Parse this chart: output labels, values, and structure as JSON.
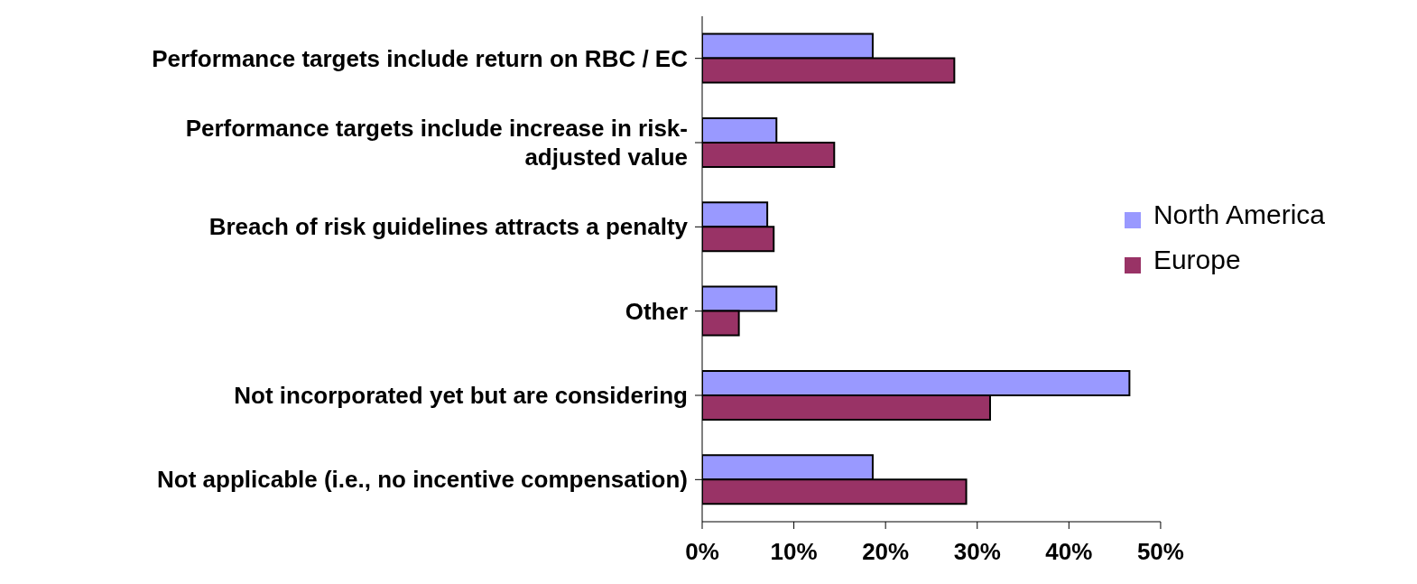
{
  "chart_data": {
    "type": "bar",
    "orientation": "horizontal",
    "categories": [
      "Performance targets include return on RBC / EC",
      "Performance targets include increase in risk-adjusted value",
      "Breach of risk guidelines attracts a penalty",
      "Other",
      "Not incorporated yet but are considering",
      "Not applicable (i.e., no incentive compensation)"
    ],
    "series": [
      {
        "name": "North America",
        "color": "#9999ff",
        "values": [
          18.6,
          8.1,
          7.1,
          8.1,
          46.6,
          18.6
        ]
      },
      {
        "name": "Europe",
        "color": "#993366",
        "values": [
          27.5,
          14.4,
          7.8,
          4.0,
          31.4,
          28.8
        ]
      }
    ],
    "xlim": [
      0,
      50
    ],
    "xticks": [
      {
        "value": 0,
        "label": "0%"
      },
      {
        "value": 10,
        "label": "10%"
      },
      {
        "value": 20,
        "label": "20%"
      },
      {
        "value": 30,
        "label": "30%"
      },
      {
        "value": 40,
        "label": "40%"
      },
      {
        "value": 50,
        "label": "50%"
      }
    ],
    "grid": false,
    "legend": "right"
  }
}
